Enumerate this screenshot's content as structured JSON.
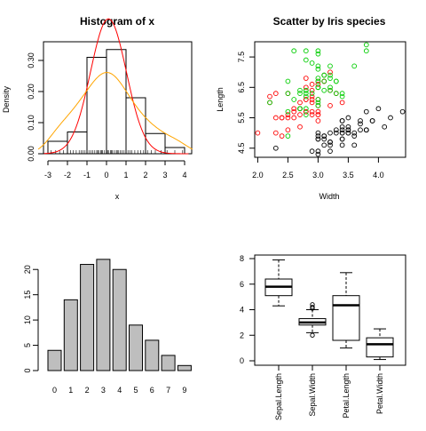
{
  "chart_data": [
    {
      "type": "bar",
      "title": "Histogram of x",
      "xlabel": "x",
      "ylabel": "Density",
      "xlim": [
        -3,
        4
      ],
      "ylim": [
        0,
        0.36
      ],
      "x_ticks": [
        "-3",
        "-2",
        "-1",
        "0",
        "1",
        "2",
        "3",
        "4"
      ],
      "y_ticks": [
        "0.00",
        "0.10",
        "0.20",
        "0.30"
      ],
      "bins": [
        {
          "from": -3,
          "to": -2,
          "density": 0.04
        },
        {
          "from": -2,
          "to": -1,
          "density": 0.07
        },
        {
          "from": -1,
          "to": 0,
          "density": 0.31
        },
        {
          "from": 0,
          "to": 1,
          "density": 0.335
        },
        {
          "from": 1,
          "to": 2,
          "density": 0.18
        },
        {
          "from": 2,
          "to": 3,
          "density": 0.065
        },
        {
          "from": 3,
          "to": 4,
          "density": 0.02
        }
      ],
      "series": [
        {
          "color": "#ff0000",
          "style": "normal density curve",
          "mean": 0.1,
          "sd": 0.92
        },
        {
          "color": "#ffa500",
          "style": "kernel density curve"
        }
      ],
      "rug": [
        -2.85,
        -2.6,
        -2.4,
        -2.2,
        -2.0,
        -1.85,
        -1.7,
        -1.55,
        -1.4,
        -1.3,
        -1.2,
        -1.1,
        -1.0,
        -0.9,
        -0.8,
        -0.7,
        -0.6,
        -0.5,
        -0.45,
        -0.4,
        -0.3,
        -0.25,
        -0.2,
        -0.1,
        0.0,
        0.05,
        0.1,
        0.2,
        0.25,
        0.3,
        0.4,
        0.5,
        0.55,
        0.6,
        0.7,
        0.8,
        0.9,
        1.0,
        1.1,
        1.2,
        1.3,
        1.45,
        1.6,
        1.75,
        1.9,
        2.1,
        2.3,
        2.5,
        2.8,
        3.1,
        3.5,
        3.9
      ]
    },
    {
      "type": "scatter",
      "title": "Scatter by Iris species",
      "xlabel": "Width",
      "ylabel": "Length",
      "xlim": [
        1.95,
        4.45
      ],
      "ylim": [
        4.2,
        8.0
      ],
      "x_ticks": [
        "2.0",
        "2.5",
        "3.0",
        "3.5",
        "4.0"
      ],
      "y_ticks": [
        "4.5",
        "5.5",
        "6.5",
        "7.5"
      ],
      "series": [
        {
          "color": "#000000",
          "points": [
            [
              3.5,
              5.1
            ],
            [
              3.0,
              4.9
            ],
            [
              3.2,
              4.7
            ],
            [
              3.1,
              4.6
            ],
            [
              3.6,
              5.0
            ],
            [
              3.9,
              5.4
            ],
            [
              3.4,
              4.6
            ],
            [
              3.4,
              5.0
            ],
            [
              2.9,
              4.4
            ],
            [
              3.1,
              4.9
            ],
            [
              3.7,
              5.4
            ],
            [
              3.4,
              4.8
            ],
            [
              3.0,
              4.8
            ],
            [
              3.0,
              4.3
            ],
            [
              4.0,
              5.8
            ],
            [
              4.4,
              5.7
            ],
            [
              3.9,
              5.4
            ],
            [
              3.5,
              5.1
            ],
            [
              3.8,
              5.7
            ],
            [
              3.8,
              5.1
            ],
            [
              3.4,
              5.4
            ],
            [
              3.7,
              5.1
            ],
            [
              3.6,
              4.6
            ],
            [
              3.3,
              5.1
            ],
            [
              3.4,
              4.8
            ],
            [
              3.0,
              5.0
            ],
            [
              3.4,
              5.0
            ],
            [
              3.5,
              5.2
            ],
            [
              3.4,
              5.2
            ],
            [
              3.2,
              4.7
            ],
            [
              3.1,
              4.8
            ],
            [
              3.4,
              5.4
            ],
            [
              4.1,
              5.2
            ],
            [
              4.2,
              5.5
            ],
            [
              3.1,
              4.9
            ],
            [
              3.2,
              5.0
            ],
            [
              3.5,
              5.5
            ],
            [
              3.6,
              4.9
            ],
            [
              3.0,
              4.4
            ],
            [
              3.4,
              5.1
            ],
            [
              3.5,
              5.0
            ],
            [
              2.3,
              4.5
            ],
            [
              3.2,
              4.4
            ],
            [
              3.5,
              5.0
            ],
            [
              3.8,
              5.1
            ],
            [
              3.0,
              4.8
            ],
            [
              3.8,
              5.1
            ],
            [
              3.2,
              4.6
            ],
            [
              3.7,
              5.3
            ],
            [
              3.3,
              5.0
            ]
          ]
        },
        {
          "color": "#ff0000",
          "points": [
            [
              3.2,
              7.0
            ],
            [
              3.2,
              6.4
            ],
            [
              3.1,
              6.9
            ],
            [
              2.3,
              5.5
            ],
            [
              2.8,
              6.5
            ],
            [
              2.8,
              5.7
            ],
            [
              3.3,
              6.3
            ],
            [
              2.4,
              4.9
            ],
            [
              2.9,
              6.6
            ],
            [
              2.7,
              5.2
            ],
            [
              2.0,
              5.0
            ],
            [
              3.0,
              5.9
            ],
            [
              2.2,
              6.0
            ],
            [
              2.9,
              6.1
            ],
            [
              2.9,
              5.6
            ],
            [
              3.1,
              6.7
            ],
            [
              3.0,
              5.6
            ],
            [
              2.7,
              5.8
            ],
            [
              2.2,
              6.2
            ],
            [
              2.5,
              5.6
            ],
            [
              3.2,
              5.9
            ],
            [
              2.8,
              6.1
            ],
            [
              2.5,
              6.3
            ],
            [
              2.8,
              6.1
            ],
            [
              2.9,
              6.4
            ],
            [
              3.0,
              6.6
            ],
            [
              2.8,
              6.8
            ],
            [
              3.0,
              6.7
            ],
            [
              2.9,
              6.0
            ],
            [
              2.6,
              5.7
            ],
            [
              2.4,
              5.5
            ],
            [
              2.4,
              5.5
            ],
            [
              2.7,
              5.8
            ],
            [
              2.7,
              6.0
            ],
            [
              3.0,
              5.4
            ],
            [
              3.4,
              6.0
            ],
            [
              3.1,
              6.7
            ],
            [
              2.3,
              6.3
            ],
            [
              3.0,
              5.6
            ],
            [
              2.5,
              5.5
            ],
            [
              2.6,
              5.5
            ],
            [
              3.0,
              6.1
            ],
            [
              2.6,
              5.8
            ],
            [
              2.3,
              5.0
            ],
            [
              2.7,
              5.6
            ],
            [
              3.0,
              5.7
            ],
            [
              2.9,
              5.7
            ],
            [
              2.9,
              6.2
            ],
            [
              2.5,
              5.1
            ],
            [
              2.8,
              5.7
            ]
          ]
        },
        {
          "color": "#00cd00",
          "points": [
            [
              3.3,
              6.3
            ],
            [
              2.7,
              5.8
            ],
            [
              3.0,
              7.1
            ],
            [
              2.9,
              6.3
            ],
            [
              3.0,
              6.5
            ],
            [
              3.0,
              7.6
            ],
            [
              2.5,
              4.9
            ],
            [
              2.9,
              7.3
            ],
            [
              2.5,
              6.7
            ],
            [
              3.6,
              7.2
            ],
            [
              3.2,
              6.5
            ],
            [
              2.7,
              6.4
            ],
            [
              3.0,
              6.8
            ],
            [
              2.5,
              5.7
            ],
            [
              2.8,
              5.8
            ],
            [
              3.2,
              6.4
            ],
            [
              3.0,
              6.5
            ],
            [
              3.8,
              7.7
            ],
            [
              2.6,
              7.7
            ],
            [
              2.2,
              6.0
            ],
            [
              3.2,
              6.9
            ],
            [
              2.8,
              5.6
            ],
            [
              2.8,
              7.7
            ],
            [
              2.7,
              6.3
            ],
            [
              3.3,
              6.7
            ],
            [
              3.2,
              7.2
            ],
            [
              2.8,
              6.2
            ],
            [
              3.0,
              6.1
            ],
            [
              2.8,
              6.4
            ],
            [
              3.0,
              7.2
            ],
            [
              2.8,
              7.4
            ],
            [
              3.8,
              7.9
            ],
            [
              2.8,
              6.4
            ],
            [
              2.8,
              6.3
            ],
            [
              2.6,
              6.1
            ],
            [
              3.0,
              7.7
            ],
            [
              3.4,
              6.3
            ],
            [
              3.1,
              6.4
            ],
            [
              3.0,
              6.0
            ],
            [
              3.1,
              6.9
            ],
            [
              3.1,
              6.7
            ],
            [
              3.1,
              6.9
            ],
            [
              2.7,
              5.8
            ],
            [
              3.2,
              6.8
            ],
            [
              3.3,
              6.7
            ],
            [
              3.0,
              6.7
            ],
            [
              2.5,
              6.3
            ],
            [
              3.0,
              6.5
            ],
            [
              3.4,
              6.2
            ],
            [
              3.0,
              5.9
            ]
          ]
        }
      ]
    },
    {
      "type": "bar",
      "title": "",
      "xlabel": "",
      "ylabel": "",
      "ylim": [
        0,
        22.5
      ],
      "categories": [
        "0",
        "1",
        "2",
        "3",
        "4",
        "5",
        "6",
        "7",
        "9"
      ],
      "values": [
        4,
        14,
        21,
        22,
        20,
        9,
        6,
        3,
        1
      ],
      "y_ticks": [
        "0",
        "5",
        "10",
        "15",
        "20"
      ],
      "bar_color": "#bebebe"
    },
    {
      "type": "box",
      "title": "",
      "ylim": [
        0,
        8
      ],
      "y_ticks": [
        "0",
        "2",
        "4",
        "6",
        "8"
      ],
      "categories": [
        "Sepal.Length",
        "Sepal.Width",
        "Petal.Length",
        "Petal.Width"
      ],
      "boxes": [
        {
          "min": 4.3,
          "q1": 5.1,
          "median": 5.8,
          "q3": 6.4,
          "max": 7.9,
          "outliers": []
        },
        {
          "min": 2.2,
          "q1": 2.8,
          "median": 3.0,
          "q3": 3.3,
          "max": 4.0,
          "outliers": [
            4.1,
            4.2,
            4.4,
            2.0
          ]
        },
        {
          "min": 1.0,
          "q1": 1.6,
          "median": 4.35,
          "q3": 5.1,
          "max": 6.9,
          "outliers": []
        },
        {
          "min": 0.1,
          "q1": 0.3,
          "median": 1.3,
          "q3": 1.8,
          "max": 2.5,
          "outliers": []
        }
      ]
    }
  ]
}
